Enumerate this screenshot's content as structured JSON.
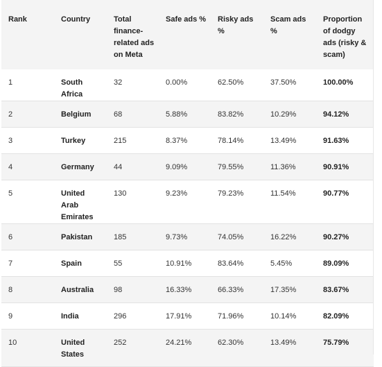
{
  "table": {
    "headers": [
      "Rank",
      "Country",
      "Total finance-related ads on Meta",
      "Safe  ads %",
      "Risky ads %",
      "Scam ads %",
      "Proportion of dodgy ads (risky & scam)"
    ],
    "rows": [
      [
        "1",
        "South Africa",
        "32",
        "0.00%",
        "62.50%",
        "37.50%",
        "100.00%"
      ],
      [
        "2",
        "Belgium",
        "68",
        "5.88%",
        "83.82%",
        "10.29%",
        "94.12%"
      ],
      [
        "3",
        "Turkey",
        "215",
        "8.37%",
        "78.14%",
        "13.49%",
        "91.63%"
      ],
      [
        "4",
        "Germany",
        "44",
        "9.09%",
        "79.55%",
        "11.36%",
        "90.91%"
      ],
      [
        "5",
        "United Arab Emirates",
        "130",
        "9.23%",
        "79.23%",
        "11.54%",
        "90.77%"
      ],
      [
        "6",
        "Pakistan",
        "185",
        "9.73%",
        "74.05%",
        "16.22%",
        "90.27%"
      ],
      [
        "7",
        "Spain",
        "55",
        "10.91%",
        "83.64%",
        "5.45%",
        "89.09%"
      ],
      [
        "8",
        "Australia",
        "98",
        "16.33%",
        "66.33%",
        "17.35%",
        "83.67%"
      ],
      [
        "9",
        "India",
        "296",
        "17.91%",
        "71.96%",
        "10.14%",
        "82.09%"
      ],
      [
        "10",
        "United States",
        "252",
        "24.21%",
        "62.30%",
        "13.49%",
        "75.79%"
      ]
    ]
  }
}
